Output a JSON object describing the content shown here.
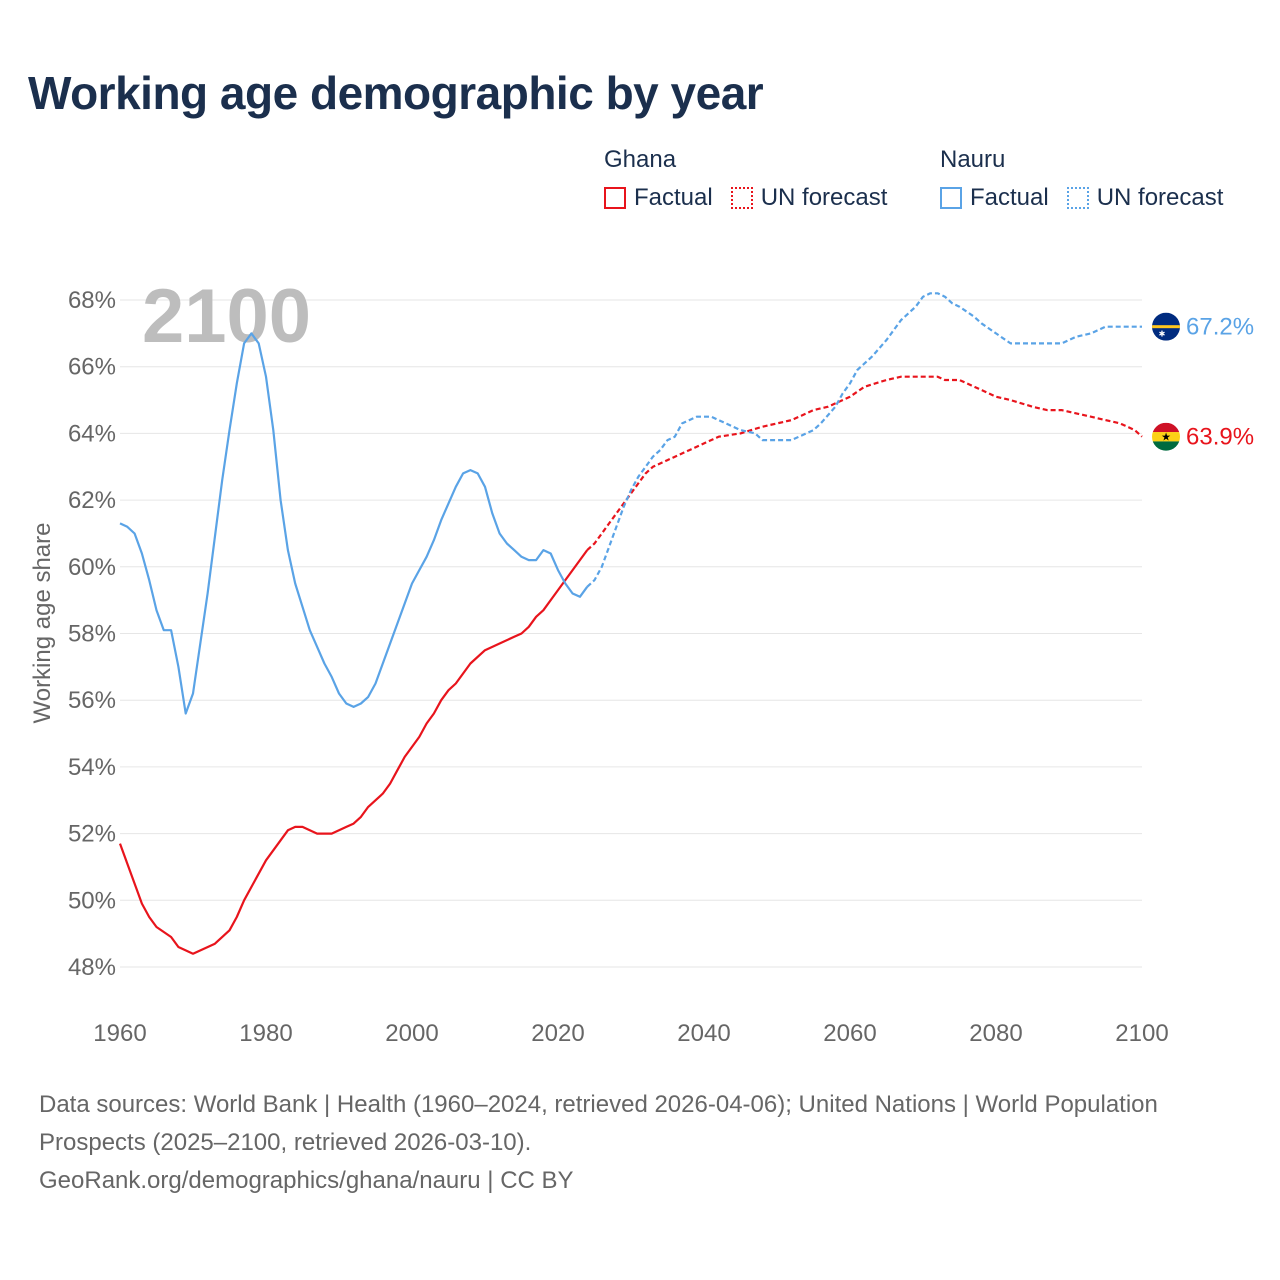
{
  "title": "Working age demographic by year",
  "legend": {
    "groups": [
      {
        "name": "Ghana",
        "factual_label": "Factual",
        "forecast_label": "UN forecast",
        "color": "#e8141c"
      },
      {
        "name": "Nauru",
        "factual_label": "Factual",
        "forecast_label": "UN forecast",
        "color": "#5aa3e6"
      }
    ]
  },
  "watermark_year": "2100",
  "end_labels": {
    "ghana": "63.9%",
    "nauru": "67.2%"
  },
  "flags": {
    "ghana": "ghana-flag-icon",
    "nauru": "nauru-flag-icon"
  },
  "colors": {
    "ghana": "#e8141c",
    "nauru": "#5aa3e6",
    "grid": "#e6e6e6",
    "axis_text": "#666666",
    "title": "#1b2f4d"
  },
  "chart_data": {
    "type": "line",
    "title": "Working age demographic by year",
    "xlabel": "",
    "ylabel": "Working age share",
    "xlim": [
      1960,
      2100
    ],
    "ylim": [
      47,
      69
    ],
    "x_ticks": [
      1960,
      1980,
      2000,
      2020,
      2040,
      2060,
      2080,
      2100
    ],
    "x_tick_labels": [
      "1960",
      "1980",
      "2000",
      "2020",
      "2040",
      "2060",
      "2080",
      "2100"
    ],
    "y_ticks": [
      48,
      50,
      52,
      54,
      56,
      58,
      60,
      62,
      64,
      66,
      68
    ],
    "y_tick_labels": [
      "48%",
      "50%",
      "52%",
      "54%",
      "56%",
      "58%",
      "60%",
      "62%",
      "64%",
      "66%",
      "68%"
    ],
    "grid": true,
    "series": [
      {
        "name": "Ghana (Factual)",
        "key": "ghana",
        "style": "solid",
        "points": [
          [
            1960,
            51.7
          ],
          [
            1962,
            50.5
          ],
          [
            1963,
            49.9
          ],
          [
            1964,
            49.5
          ],
          [
            1965,
            49.2
          ],
          [
            1967,
            48.9
          ],
          [
            1968,
            48.6
          ],
          [
            1970,
            48.4
          ],
          [
            1973,
            48.7
          ],
          [
            1975,
            49.1
          ],
          [
            1976,
            49.5
          ],
          [
            1977,
            50.0
          ],
          [
            1980,
            51.2
          ],
          [
            1982,
            51.8
          ],
          [
            1983,
            52.1
          ],
          [
            1984,
            52.2
          ],
          [
            1985,
            52.2
          ],
          [
            1987,
            52.0
          ],
          [
            1989,
            52.0
          ],
          [
            1991,
            52.2
          ],
          [
            1992,
            52.3
          ],
          [
            1993,
            52.5
          ],
          [
            1994,
            52.8
          ],
          [
            1996,
            53.2
          ],
          [
            1997,
            53.5
          ],
          [
            1998,
            53.9
          ],
          [
            1999,
            54.3
          ],
          [
            2001,
            54.9
          ],
          [
            2002,
            55.3
          ],
          [
            2003,
            55.6
          ],
          [
            2004,
            56.0
          ],
          [
            2005,
            56.3
          ],
          [
            2006,
            56.5
          ],
          [
            2008,
            57.1
          ],
          [
            2010,
            57.5
          ],
          [
            2012,
            57.7
          ],
          [
            2014,
            57.9
          ],
          [
            2015,
            58.0
          ],
          [
            2016,
            58.2
          ],
          [
            2017,
            58.5
          ],
          [
            2018,
            58.7
          ],
          [
            2019,
            59.0
          ],
          [
            2020,
            59.3
          ],
          [
            2021,
            59.6
          ],
          [
            2022,
            59.9
          ],
          [
            2023,
            60.2
          ],
          [
            2024,
            60.5
          ]
        ]
      },
      {
        "name": "Ghana (UN forecast)",
        "key": "ghana",
        "style": "dotted",
        "points": [
          [
            2024,
            60.5
          ],
          [
            2025,
            60.7
          ],
          [
            2026,
            61.0
          ],
          [
            2027,
            61.3
          ],
          [
            2028,
            61.6
          ],
          [
            2029,
            61.9
          ],
          [
            2030,
            62.2
          ],
          [
            2031,
            62.5
          ],
          [
            2032,
            62.8
          ],
          [
            2033,
            63.0
          ],
          [
            2035,
            63.2
          ],
          [
            2038,
            63.5
          ],
          [
            2040,
            63.7
          ],
          [
            2042,
            63.9
          ],
          [
            2045,
            64.0
          ],
          [
            2048,
            64.2
          ],
          [
            2050,
            64.3
          ],
          [
            2052,
            64.4
          ],
          [
            2055,
            64.7
          ],
          [
            2057,
            64.8
          ],
          [
            2060,
            65.1
          ],
          [
            2062,
            65.4
          ],
          [
            2065,
            65.6
          ],
          [
            2067,
            65.7
          ],
          [
            2070,
            65.7
          ],
          [
            2072,
            65.7
          ],
          [
            2073,
            65.6
          ],
          [
            2075,
            65.6
          ],
          [
            2078,
            65.3
          ],
          [
            2080,
            65.1
          ],
          [
            2082,
            65.0
          ],
          [
            2085,
            64.8
          ],
          [
            2087,
            64.7
          ],
          [
            2089,
            64.7
          ],
          [
            2091,
            64.6
          ],
          [
            2093,
            64.5
          ],
          [
            2095,
            64.4
          ],
          [
            2097,
            64.3
          ],
          [
            2099,
            64.1
          ],
          [
            2100,
            63.9
          ]
        ]
      },
      {
        "name": "Nauru (Factual)",
        "key": "nauru",
        "style": "solid",
        "points": [
          [
            1960,
            61.3
          ],
          [
            1961,
            61.2
          ],
          [
            1962,
            61.0
          ],
          [
            1963,
            60.4
          ],
          [
            1964,
            59.6
          ],
          [
            1965,
            58.7
          ],
          [
            1966,
            58.1
          ],
          [
            1967,
            58.1
          ],
          [
            1968,
            57.0
          ],
          [
            1969,
            55.6
          ],
          [
            1970,
            56.2
          ],
          [
            1971,
            57.7
          ],
          [
            1972,
            59.2
          ],
          [
            1973,
            60.9
          ],
          [
            1974,
            62.6
          ],
          [
            1975,
            64.1
          ],
          [
            1976,
            65.5
          ],
          [
            1977,
            66.7
          ],
          [
            1978,
            67.0
          ],
          [
            1979,
            66.7
          ],
          [
            1980,
            65.7
          ],
          [
            1981,
            64.1
          ],
          [
            1982,
            62.0
          ],
          [
            1983,
            60.5
          ],
          [
            1984,
            59.5
          ],
          [
            1985,
            58.8
          ],
          [
            1986,
            58.1
          ],
          [
            1987,
            57.6
          ],
          [
            1988,
            57.1
          ],
          [
            1989,
            56.7
          ],
          [
            1990,
            56.2
          ],
          [
            1991,
            55.9
          ],
          [
            1992,
            55.8
          ],
          [
            1993,
            55.9
          ],
          [
            1994,
            56.1
          ],
          [
            1995,
            56.5
          ],
          [
            1996,
            57.1
          ],
          [
            1997,
            57.7
          ],
          [
            1998,
            58.3
          ],
          [
            1999,
            58.9
          ],
          [
            2000,
            59.5
          ],
          [
            2001,
            59.9
          ],
          [
            2002,
            60.3
          ],
          [
            2003,
            60.8
          ],
          [
            2004,
            61.4
          ],
          [
            2005,
            61.9
          ],
          [
            2006,
            62.4
          ],
          [
            2007,
            62.8
          ],
          [
            2008,
            62.9
          ],
          [
            2009,
            62.8
          ],
          [
            2010,
            62.4
          ],
          [
            2011,
            61.6
          ],
          [
            2012,
            61.0
          ],
          [
            2013,
            60.7
          ],
          [
            2014,
            60.5
          ],
          [
            2015,
            60.3
          ],
          [
            2016,
            60.2
          ],
          [
            2017,
            60.2
          ],
          [
            2018,
            60.5
          ],
          [
            2019,
            60.4
          ],
          [
            2020,
            59.9
          ],
          [
            2021,
            59.5
          ],
          [
            2022,
            59.2
          ],
          [
            2023,
            59.1
          ],
          [
            2024,
            59.4
          ]
        ]
      },
      {
        "name": "Nauru (UN forecast)",
        "key": "nauru",
        "style": "dotted",
        "points": [
          [
            2024,
            59.4
          ],
          [
            2025,
            59.6
          ],
          [
            2026,
            60.0
          ],
          [
            2027,
            60.6
          ],
          [
            2028,
            61.2
          ],
          [
            2029,
            61.8
          ],
          [
            2030,
            62.3
          ],
          [
            2031,
            62.7
          ],
          [
            2032,
            63.0
          ],
          [
            2033,
            63.3
          ],
          [
            2034,
            63.5
          ],
          [
            2035,
            63.8
          ],
          [
            2036,
            63.9
          ],
          [
            2037,
            64.3
          ],
          [
            2039,
            64.5
          ],
          [
            2041,
            64.5
          ],
          [
            2043,
            64.3
          ],
          [
            2045,
            64.1
          ],
          [
            2047,
            64.0
          ],
          [
            2048,
            63.8
          ],
          [
            2050,
            63.8
          ],
          [
            2052,
            63.8
          ],
          [
            2053,
            63.9
          ],
          [
            2055,
            64.1
          ],
          [
            2056,
            64.3
          ],
          [
            2058,
            64.8
          ],
          [
            2059,
            65.2
          ],
          [
            2060,
            65.5
          ],
          [
            2061,
            65.9
          ],
          [
            2063,
            66.3
          ],
          [
            2065,
            66.8
          ],
          [
            2067,
            67.4
          ],
          [
            2069,
            67.8
          ],
          [
            2070,
            68.1
          ],
          [
            2071,
            68.2
          ],
          [
            2072,
            68.2
          ],
          [
            2073,
            68.1
          ],
          [
            2074,
            67.9
          ],
          [
            2075,
            67.8
          ],
          [
            2077,
            67.5
          ],
          [
            2078,
            67.3
          ],
          [
            2080,
            67.0
          ],
          [
            2082,
            66.7
          ],
          [
            2085,
            66.7
          ],
          [
            2088,
            66.7
          ],
          [
            2089,
            66.7
          ],
          [
            2091,
            66.9
          ],
          [
            2093,
            67.0
          ],
          [
            2095,
            67.2
          ],
          [
            2097,
            67.2
          ],
          [
            2100,
            67.2
          ]
        ]
      }
    ],
    "end_values": {
      "ghana": 63.9,
      "nauru": 67.2
    }
  },
  "footer": {
    "sources": "Data sources: World Bank | Health (1960–2024, retrieved 2026-04-06); United Nations | World Population Prospects (2025–2100, retrieved 2026-03-10).",
    "attribution": "GeoRank.org/demographics/ghana/nauru | CC BY"
  }
}
